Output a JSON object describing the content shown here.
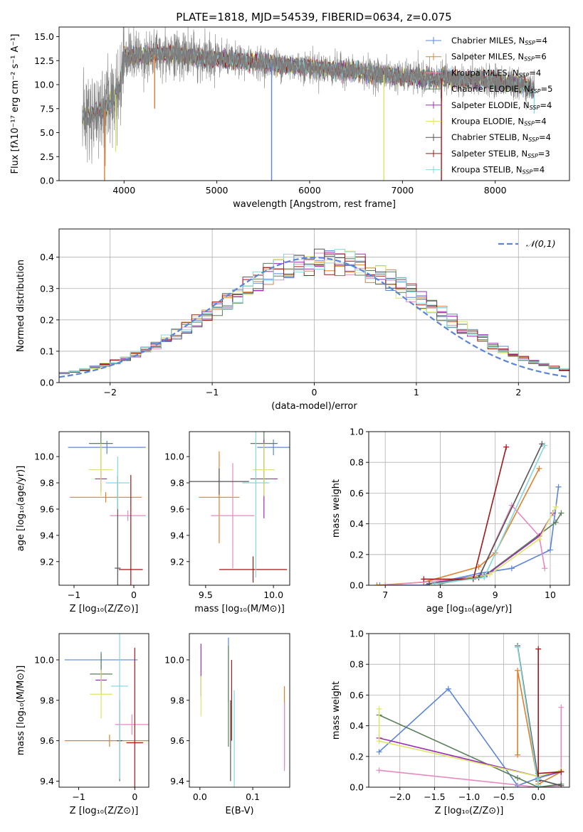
{
  "figure_title": "PLATE=1818, MJD=54539, FIBERID=0634, z=0.075",
  "colors": {
    "Chabrier MILES": "#5b85d8",
    "Salpeter MILES": "#e0802c",
    "Kroupa MILES": "#e68ac0",
    "Chabrier ELODIE": "#5b7f5a",
    "Salpeter ELODIE": "#9b2fb0",
    "Kroupa ELODIE": "#dde56a",
    "Chabrier STELIB": "#555555",
    "Salpeter STELIB": "#a01818",
    "Kroupa STELIB": "#86d8dc",
    "data": "#7f7f7f",
    "gauss": "#5b85d8",
    "grid": "#b0b0b0"
  },
  "legend_labels": [
    {
      "key": "Chabrier MILES",
      "text": "Chabrier MILES, N",
      "sub": "SSP",
      "tail": "=4"
    },
    {
      "key": "Salpeter MILES",
      "text": "Salpeter MILES, N",
      "sub": "SSP",
      "tail": "=6"
    },
    {
      "key": "Kroupa MILES",
      "text": "Kroupa MILES, N",
      "sub": "SSP",
      "tail": "=4"
    },
    {
      "key": "Chabrier ELODIE",
      "text": "Chabrier ELODIE, N",
      "sub": "SSP",
      "tail": "=5"
    },
    {
      "key": "Salpeter ELODIE",
      "text": "Salpeter ELODIE, N",
      "sub": "SSP",
      "tail": "=4"
    },
    {
      "key": "Kroupa ELODIE",
      "text": "Kroupa ELODIE, N",
      "sub": "SSP",
      "tail": "=4"
    },
    {
      "key": "Chabrier STELIB",
      "text": "Chabrier STELIB, N",
      "sub": "SSP",
      "tail": "=4"
    },
    {
      "key": "Salpeter STELIB",
      "text": "Salpeter STELIB, N",
      "sub": "SSP",
      "tail": "=3"
    },
    {
      "key": "Kroupa STELIB",
      "text": "Kroupa STELIB, N",
      "sub": "SSP",
      "tail": "=4"
    }
  ],
  "chart_data": [
    {
      "id": "spectrum",
      "type": "line",
      "xlabel": "wavelength [Angstrom, rest frame]",
      "ylabel": "Flux [fλ10⁻¹⁷ erg cm⁻² s⁻¹ A⁻¹]",
      "xlim": [
        3300,
        8800
      ],
      "ylim": [
        0,
        16
      ],
      "xticks": [
        4000,
        5000,
        6000,
        7000,
        8000
      ],
      "yticks": [
        0.0,
        2.5,
        5.0,
        7.5,
        10.0,
        12.5,
        15.0
      ],
      "xtick_labels": [
        "4000",
        "5000",
        "6000",
        "7000",
        "8000"
      ],
      "ytick_labels": [
        "0.0",
        "2.5",
        "5.0",
        "7.5",
        "10.0",
        "12.5",
        "15.0"
      ],
      "continuum_knots": [
        [
          3550,
          6.5
        ],
        [
          3800,
          7.5
        ],
        [
          3950,
          9.5
        ],
        [
          4000,
          13.0
        ],
        [
          4200,
          13.0
        ],
        [
          4500,
          13.3
        ],
        [
          4800,
          12.8
        ],
        [
          5200,
          12.5
        ],
        [
          5600,
          12.2
        ],
        [
          6000,
          11.8
        ],
        [
          6500,
          11.4
        ],
        [
          7000,
          10.8
        ],
        [
          7500,
          10.6
        ],
        [
          8000,
          10.3
        ],
        [
          8300,
          10.0
        ],
        [
          8400,
          9.5
        ]
      ],
      "model_dips": [
        [
          3790,
          0
        ],
        [
          3910,
          3
        ],
        [
          4330,
          7.5
        ],
        [
          5590,
          0
        ],
        [
          6800,
          0
        ],
        [
          7420,
          0
        ],
        [
          8420,
          7
        ]
      ],
      "legend_position": "upper right",
      "grid": false
    },
    {
      "id": "residuals",
      "type": "histogram",
      "xlabel": "(data-model)/error",
      "ylabel": "Normed distribution",
      "xlim": [
        -2.5,
        2.5
      ],
      "ylim": [
        0,
        0.49
      ],
      "xticks": [
        -2,
        -1,
        0,
        1,
        2
      ],
      "yticks": [
        0.0,
        0.1,
        0.2,
        0.3,
        0.4
      ],
      "xtick_labels": [
        "−2",
        "−1",
        "0",
        "1",
        "2"
      ],
      "ytick_labels": [
        "0.0",
        "0.1",
        "0.2",
        "0.3",
        "0.4"
      ],
      "bins": [
        -2.5,
        2.5,
        50
      ],
      "gauss_label": "𝒩(0,1)",
      "legend_position": "upper right",
      "grid": true
    },
    {
      "id": "age_vs_Z",
      "type": "errorbar",
      "xlabel": "Z [log₁₀(Z/Z⊙)]",
      "ylabel": "age  [log₁₀(age/yr)]",
      "xlim": [
        -1.25,
        0.25
      ],
      "ylim": [
        9.02,
        10.19
      ],
      "xticks": [
        -1,
        0
      ],
      "yticks": [
        9.2,
        9.4,
        9.6,
        9.8,
        10.0
      ],
      "xtick_labels": [
        "−1",
        "0"
      ],
      "ytick_labels": [
        "9.2",
        "9.4",
        "9.6",
        "9.8",
        "10.0"
      ],
      "points": [
        {
          "s": "Chabrier MILES",
          "x": -0.45,
          "xe": 0.65,
          "y": 10.07,
          "ye": 0.05
        },
        {
          "s": "Salpeter MILES",
          "x": -0.47,
          "xe": 0.6,
          "y": 9.69,
          "ye": 0.04
        },
        {
          "s": "Kroupa MILES",
          "x": -0.1,
          "xe": 0.3,
          "y": 9.55,
          "ye": 0.04
        },
        {
          "s": "Chabrier ELODIE",
          "x": -0.55,
          "xe": 0.2,
          "y": 10.1,
          "ye": 0.17
        },
        {
          "s": "Salpeter ELODIE",
          "x": -0.55,
          "xe": 0.1,
          "y": 9.83,
          "ye": 0.1
        },
        {
          "s": "Kroupa ELODIE",
          "x": -0.55,
          "xe": 0.2,
          "y": 9.9,
          "ye": 0.2
        },
        {
          "s": "Chabrier STELIB",
          "x": -0.27,
          "xe": 0.05,
          "y": 9.15,
          "ye": 0.7
        },
        {
          "s": "Salpeter STELIB",
          "x": -0.05,
          "xe": 0.2,
          "y": 9.14,
          "ye": 0.72
        },
        {
          "s": "Kroupa STELIB",
          "x": -0.27,
          "xe": 0.2,
          "y": 9.8,
          "ye": 0.2
        }
      ]
    },
    {
      "id": "age_vs_mass",
      "type": "errorbar",
      "xlabel": "mass [log₁₀(M/M⊙)]",
      "ylabel": "",
      "xlim": [
        9.38,
        10.12
      ],
      "ylim": [
        9.02,
        10.19
      ],
      "xticks": [
        9.5,
        10.0
      ],
      "yticks": [
        9.2,
        9.4,
        9.6,
        9.8,
        10.0
      ],
      "xtick_labels": [
        "9.5",
        "10.0"
      ],
      "ytick_labels": [
        "9.2",
        "9.4",
        "9.6",
        "9.8",
        "10.0"
      ],
      "points": [
        {
          "s": "Chabrier MILES",
          "x": 10.0,
          "xe": 0.12,
          "y": 10.07,
          "ye": 0.06
        },
        {
          "s": "Salpeter MILES",
          "x": 9.6,
          "xe": 0.15,
          "y": 9.69,
          "ye": 0.35
        },
        {
          "s": "Kroupa MILES",
          "x": 9.7,
          "xe": 0.16,
          "y": 9.55,
          "ye": 0.4
        },
        {
          "s": "Chabrier ELODIE",
          "x": 9.93,
          "xe": 0.1,
          "y": 10.1,
          "ye": 0.3
        },
        {
          "s": "Salpeter ELODIE",
          "x": 9.93,
          "xe": 0.1,
          "y": 9.83,
          "ye": 0.3
        },
        {
          "s": "Kroupa ELODIE",
          "x": 9.93,
          "xe": 0.08,
          "y": 9.9,
          "ye": 0.2
        },
        {
          "s": "Chabrier STELIB",
          "x": 9.6,
          "xe": 0.22,
          "y": 9.81,
          "ye": 0.1
        },
        {
          "s": "Salpeter STELIB",
          "x": 9.85,
          "xe": 0.25,
          "y": 9.14,
          "ye": 0.1
        },
        {
          "s": "Kroupa STELIB",
          "x": 9.87,
          "xe": 0.1,
          "y": 9.8,
          "ye": 0.72
        }
      ]
    },
    {
      "id": "weight_vs_age",
      "type": "line",
      "xlabel": "age  [log₁₀(age/yr)]",
      "ylabel": "mass weight",
      "xlim": [
        6.7,
        10.35
      ],
      "ylim": [
        0,
        1.0
      ],
      "xticks": [
        7,
        8,
        9,
        10
      ],
      "yticks": [
        0.0,
        0.2,
        0.4,
        0.6,
        0.8,
        1.0
      ],
      "xtick_labels": [
        "7",
        "8",
        "9",
        "10"
      ],
      "ytick_labels": [
        "0.0",
        "0.2",
        "0.4",
        "0.6",
        "0.8",
        "1.0"
      ],
      "grid": true,
      "series": [
        {
          "s": "Chabrier MILES",
          "x": [
            6.9,
            7.7,
            8.75,
            9.3,
            10.0,
            10.15
          ],
          "y": [
            0.0,
            0.0,
            0.08,
            0.11,
            0.23,
            0.64
          ]
        },
        {
          "s": "Salpeter MILES",
          "x": [
            6.85,
            7.7,
            8.7,
            9.0,
            9.8
          ],
          "y": [
            0.0,
            0.02,
            0.12,
            0.21,
            0.76
          ]
        },
        {
          "s": "Kroupa MILES",
          "x": [
            7.0,
            8.7,
            9.3,
            9.8,
            9.9
          ],
          "y": [
            0.0,
            0.05,
            0.52,
            0.32,
            0.11
          ]
        },
        {
          "s": "Chabrier ELODIE",
          "x": [
            8.0,
            8.8,
            10.1,
            10.2
          ],
          "y": [
            0.01,
            0.06,
            0.41,
            0.47
          ]
        },
        {
          "s": "Salpeter ELODIE",
          "x": [
            7.8,
            8.85,
            9.8,
            10.05
          ],
          "y": [
            0.01,
            0.07,
            0.32,
            0.47
          ]
        },
        {
          "s": "Kroupa ELODIE",
          "x": [
            7.9,
            8.9,
            9.8,
            10.1
          ],
          "y": [
            0.01,
            0.07,
            0.3,
            0.51
          ]
        },
        {
          "s": "Chabrier STELIB",
          "x": [
            7.8,
            8.7,
            9.85
          ],
          "y": [
            0.01,
            0.05,
            0.92
          ]
        },
        {
          "s": "Salpeter STELIB",
          "x": [
            7.7,
            8.6,
            9.2
          ],
          "y": [
            0.04,
            0.04,
            0.9
          ]
        },
        {
          "s": "Kroupa STELIB",
          "x": [
            7.9,
            8.8,
            9.9
          ],
          "y": [
            0.01,
            0.05,
            0.91
          ]
        }
      ]
    },
    {
      "id": "mass_vs_Z",
      "type": "errorbar",
      "xlabel": "Z [log₁₀(Z/Z⊙)]",
      "ylabel": "mass [log₁₀(M/M⊙)]",
      "xlim": [
        -1.35,
        0.25
      ],
      "ylim": [
        9.37,
        10.13
      ],
      "xticks": [
        -1,
        0
      ],
      "yticks": [
        9.4,
        9.6,
        9.8,
        10.0
      ],
      "xtick_labels": [
        "−1",
        "0"
      ],
      "ytick_labels": [
        "9.4",
        "9.6",
        "9.8",
        "10.0"
      ],
      "points": [
        {
          "s": "Chabrier MILES",
          "x": -0.6,
          "xe": 0.65,
          "y": 10.0,
          "ye": 0.04
        },
        {
          "s": "Salpeter MILES",
          "x": -0.45,
          "xe": 0.8,
          "y": 9.6,
          "ye": 0.03
        },
        {
          "s": "Kroupa MILES",
          "x": -0.05,
          "xe": 0.3,
          "y": 9.68,
          "ye": 0.05
        },
        {
          "s": "Chabrier ELODIE",
          "x": -0.6,
          "xe": 0.2,
          "y": 9.93,
          "ye": 0.1
        },
        {
          "s": "Salpeter ELODIE",
          "x": -0.6,
          "xe": 0.1,
          "y": 9.9,
          "ye": 0.05
        },
        {
          "s": "Kroupa ELODIE",
          "x": -0.6,
          "xe": 0.2,
          "y": 9.83,
          "ye": 0.12
        },
        {
          "s": "Chabrier STELIB",
          "x": -0.27,
          "xe": 0.05,
          "y": 9.6,
          "ye": 0.2
        },
        {
          "s": "Salpeter STELIB",
          "x": 0.0,
          "xe": 0.15,
          "y": 9.59,
          "ye": 0.47
        },
        {
          "s": "Kroupa STELIB",
          "x": -0.27,
          "xe": 0.15,
          "y": 9.87,
          "ye": 0.46
        }
      ]
    },
    {
      "id": "mass_vs_EBV",
      "type": "errorbar",
      "xlabel": "E(B-V)",
      "ylabel": "",
      "xlim": [
        -0.02,
        0.17
      ],
      "ylim": [
        9.37,
        10.13
      ],
      "xticks": [
        0.0,
        0.1
      ],
      "yticks": [
        9.4,
        9.6,
        9.8,
        10.0
      ],
      "xtick_labels": [
        "0.0",
        "0.1"
      ],
      "ytick_labels": [
        "9.4",
        "9.6",
        "9.8",
        "10.0"
      ],
      "points": [
        {
          "s": "Chabrier MILES",
          "x": 0.054,
          "xe": 0,
          "y": 9.95,
          "ye": 0.16
        },
        {
          "s": "Salpeter MILES",
          "x": 0.16,
          "xe": 0,
          "y": 9.67,
          "ye": 0.2
        },
        {
          "s": "Kroupa MILES",
          "x": 0.16,
          "xe": 0,
          "y": 9.62,
          "ye": 0.17
        },
        {
          "s": "Chabrier ELODIE",
          "x": 0.054,
          "xe": 0,
          "y": 9.82,
          "ye": 0.25
        },
        {
          "s": "Salpeter ELODIE",
          "x": 0.002,
          "xe": 0,
          "y": 9.95,
          "ye": 0.13
        },
        {
          "s": "Kroupa ELODIE",
          "x": 0.002,
          "xe": 0,
          "y": 9.82,
          "ye": 0.1
        },
        {
          "s": "Chabrier STELIB",
          "x": 0.058,
          "xe": 0,
          "y": 9.6,
          "ye": 0.2
        },
        {
          "s": "Salpeter STELIB",
          "x": 0.06,
          "xe": 0,
          "y": 9.8,
          "ye": 0.2
        },
        {
          "s": "Kroupa STELIB",
          "x": 0.065,
          "xe": 0,
          "y": 9.6,
          "ye": 0.25
        }
      ]
    },
    {
      "id": "weight_vs_Z",
      "type": "line",
      "xlabel": "Z [log₁₀(Z/Z⊙)]",
      "ylabel": "mass weight",
      "xlim": [
        -2.45,
        0.45
      ],
      "ylim": [
        0,
        1.0
      ],
      "xticks": [
        -2.0,
        -1.5,
        -1.0,
        -0.5,
        0.0
      ],
      "yticks": [
        0.0,
        0.2,
        0.4,
        0.6,
        0.8,
        1.0
      ],
      "xtick_labels": [
        "−2.0",
        "−1.5",
        "−1.0",
        "−0.5",
        "0.0"
      ],
      "ytick_labels": [
        "0.0",
        "0.2",
        "0.4",
        "0.6",
        "0.8",
        "1.0"
      ],
      "grid": true,
      "series": [
        {
          "s": "Chabrier MILES",
          "x": [
            -2.3,
            -1.3,
            -0.3,
            0.0,
            0.33
          ],
          "y": [
            0.23,
            0.64,
            0.01,
            0.06,
            0.1
          ]
        },
        {
          "s": "Salpeter MILES",
          "x": [
            -0.3,
            -0.3,
            0.0,
            0.33
          ],
          "y": [
            0.21,
            0.76,
            0.02,
            0.1
          ]
        },
        {
          "s": "Kroupa MILES",
          "x": [
            -2.3,
            0.0,
            0.33,
            0.33
          ],
          "y": [
            0.11,
            0.0,
            0.01,
            0.52
          ]
        },
        {
          "s": "Chabrier ELODIE",
          "x": [
            -2.3,
            -0.3,
            0.0,
            0.33
          ],
          "y": [
            0.47,
            0.06,
            0.0,
            0.02
          ]
        },
        {
          "s": "Salpeter ELODIE",
          "x": [
            -2.3,
            0.0,
            0.33
          ],
          "y": [
            0.32,
            0.07,
            0.1
          ]
        },
        {
          "s": "Kroupa ELODIE",
          "x": [
            -2.3,
            -2.3,
            0.0,
            0.33
          ],
          "y": [
            0.51,
            0.3,
            0.07,
            0.11
          ]
        },
        {
          "s": "Chabrier STELIB",
          "x": [
            -0.3,
            0.0,
            0.33
          ],
          "y": [
            0.92,
            0.05,
            0.01
          ]
        },
        {
          "s": "Salpeter STELIB",
          "x": [
            0.0,
            0.0,
            0.0,
            0.33
          ],
          "y": [
            0.9,
            0.04,
            0.09,
            0.1
          ]
        },
        {
          "s": "Kroupa STELIB",
          "x": [
            -0.3,
            0.0,
            0.0
          ],
          "y": [
            0.91,
            0.01,
            0.05
          ]
        }
      ]
    }
  ]
}
